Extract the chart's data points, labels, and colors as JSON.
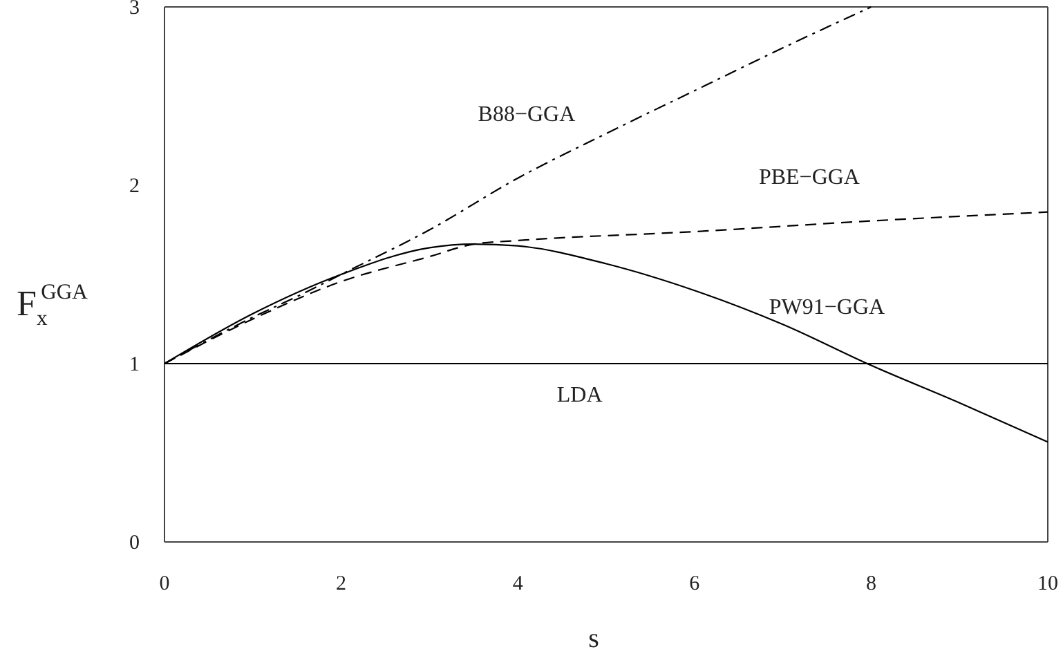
{
  "chart_data": {
    "type": "line",
    "xlabel": "s",
    "ylabel": "F$_{x}$$^{GGA}$",
    "xlim": [
      0,
      10
    ],
    "ylim": [
      0,
      3
    ],
    "xticks": [
      0,
      2,
      4,
      6,
      8,
      10
    ],
    "yticks": [
      0,
      1,
      2,
      3
    ],
    "grid": false,
    "series": [
      {
        "name": "B88−GGA",
        "color": "#000000",
        "line_style": "dashdot",
        "x": [
          0,
          1,
          1.56,
          2,
          3,
          4,
          5,
          6,
          7,
          8
        ],
        "values": [
          1,
          1.26,
          1.39,
          1.5,
          1.75,
          2.04,
          2.29,
          2.53,
          2.77,
          3
        ]
      },
      {
        "name": "PBE−GGA",
        "color": "#000000",
        "line_style": "dashed",
        "x": [
          0,
          1,
          2,
          3,
          3.5,
          4,
          6,
          8,
          10
        ],
        "values": [
          1,
          1.25,
          1.46,
          1.6,
          1.67,
          1.69,
          1.74,
          1.8,
          1.85
        ]
      },
      {
        "name": "PW91−GGA",
        "color": "#000000",
        "line_style": "solid",
        "x": [
          0,
          1,
          2,
          3,
          3.5,
          4,
          5,
          6,
          7,
          8,
          9,
          10
        ],
        "values": [
          1,
          1.28,
          1.5,
          1.65,
          1.67,
          1.66,
          1.56,
          1.41,
          1.22,
          0.99,
          0.78,
          0.56
        ]
      },
      {
        "name": "LDA",
        "color": "#000000",
        "line_style": "solid",
        "x": [
          0,
          10
        ],
        "values": [
          1,
          1
        ]
      }
    ]
  }
}
